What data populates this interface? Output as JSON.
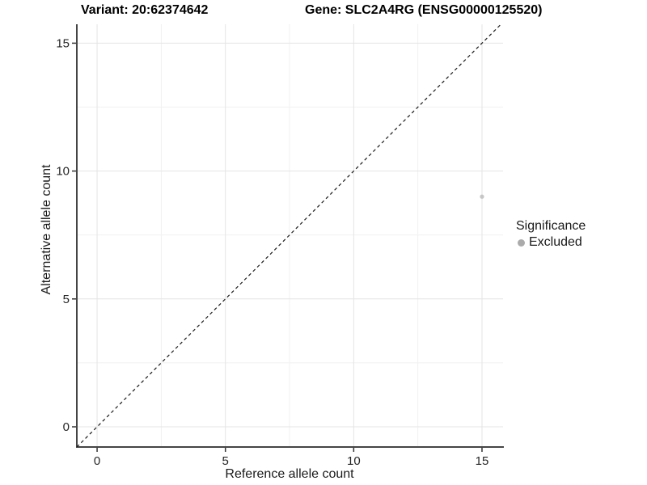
{
  "chart_data": {
    "type": "scatter",
    "titles": {
      "left": "Variant: 20:62374642",
      "right": "Gene: SLC2A4RG (ENSG00000125520)"
    },
    "xlabel": "Reference allele count",
    "ylabel": "Alternative allele count",
    "xlim": [
      -0.79,
      15.82
    ],
    "ylim": [
      -0.79,
      15.74
    ],
    "x_ticks": [
      0,
      5,
      10,
      15
    ],
    "y_ticks": [
      0,
      5,
      10,
      15
    ],
    "x_minor_ticks": [
      2.5,
      7.5,
      12.5
    ],
    "y_minor_ticks": [
      2.5,
      7.5,
      12.5
    ],
    "grid": true,
    "points": [
      {
        "x": 15,
        "y": 9,
        "significance": "Excluded"
      }
    ],
    "identity_line": {
      "style": "dashed",
      "equation": "y = x"
    },
    "legend": {
      "title": "Significance",
      "position": "right",
      "items": [
        {
          "label": "Excluded",
          "color": "#ababab"
        }
      ]
    },
    "colors": {
      "point": "#c6c6c6",
      "axis": "#454545",
      "tick": "#333333",
      "tick_label": "#262626",
      "grid_major": "#e4e4e4",
      "grid_minor": "#f1f1f1",
      "dashed_line": "#1a1a1a"
    }
  }
}
